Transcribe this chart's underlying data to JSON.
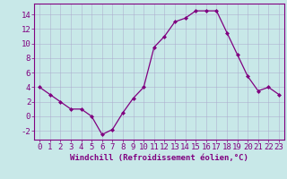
{
  "x": [
    0,
    1,
    2,
    3,
    4,
    5,
    6,
    7,
    8,
    9,
    10,
    11,
    12,
    13,
    14,
    15,
    16,
    17,
    18,
    19,
    20,
    21,
    22,
    23
  ],
  "y": [
    4,
    3,
    2,
    1,
    1,
    0,
    -2.5,
    -1.8,
    0.5,
    2.5,
    4,
    9.5,
    11,
    13,
    13.5,
    14.5,
    14.5,
    14.5,
    11.5,
    8.5,
    5.5,
    3.5,
    4,
    3
  ],
  "xlabel": "Windchill (Refroidissement éolien,°C)",
  "xlim": [
    -0.5,
    23.5
  ],
  "ylim": [
    -3.2,
    15.5
  ],
  "yticks": [
    -2,
    0,
    2,
    4,
    6,
    8,
    10,
    12,
    14
  ],
  "xticks": [
    0,
    1,
    2,
    3,
    4,
    5,
    6,
    7,
    8,
    9,
    10,
    11,
    12,
    13,
    14,
    15,
    16,
    17,
    18,
    19,
    20,
    21,
    22,
    23
  ],
  "line_color": "#800080",
  "bg_color": "#C8E8E8",
  "grid_color": "#AAAACC",
  "xlabel_fontsize": 6.5,
  "tick_fontsize": 6.5
}
